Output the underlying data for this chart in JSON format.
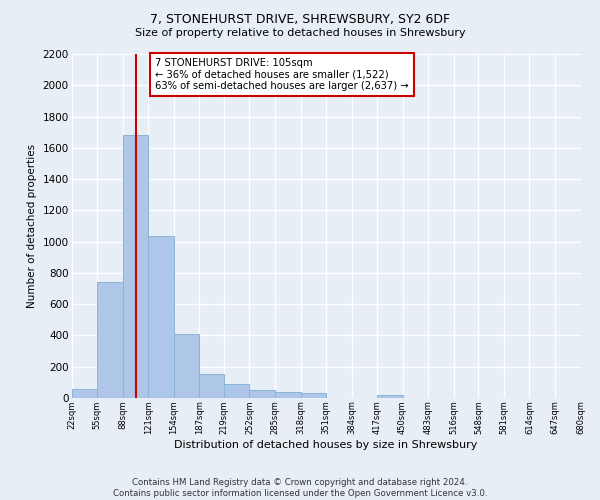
{
  "title": "7, STONEHURST DRIVE, SHREWSBURY, SY2 6DF",
  "subtitle": "Size of property relative to detached houses in Shrewsbury",
  "xlabel": "Distribution of detached houses by size in Shrewsbury",
  "ylabel": "Number of detached properties",
  "footer_line1": "Contains HM Land Registry data © Crown copyright and database right 2024.",
  "footer_line2": "Contains public sector information licensed under the Open Government Licence v3.0.",
  "bar_lefts": [
    22,
    55,
    88,
    121,
    154,
    187,
    219,
    252,
    285,
    318,
    351,
    384,
    417,
    450,
    483,
    516,
    548,
    581,
    614,
    647
  ],
  "bar_rights": [
    55,
    88,
    121,
    154,
    187,
    219,
    252,
    285,
    318,
    351,
    384,
    417,
    450,
    483,
    516,
    548,
    581,
    614,
    647,
    680
  ],
  "bar_heights": [
    55,
    740,
    1680,
    1035,
    410,
    155,
    90,
    50,
    40,
    30,
    0,
    0,
    20,
    0,
    0,
    0,
    0,
    0,
    0,
    0
  ],
  "bar_color": "#aec6e8",
  "bar_edge_color": "#8ab4d8",
  "vline_x": 105,
  "vline_color": "#cc0000",
  "ylim": [
    0,
    2200
  ],
  "yticks": [
    0,
    200,
    400,
    600,
    800,
    1000,
    1200,
    1400,
    1600,
    1800,
    2000,
    2200
  ],
  "xtick_labels": [
    "22sqm",
    "55sqm",
    "88sqm",
    "121sqm",
    "154sqm",
    "187sqm",
    "219sqm",
    "252sqm",
    "285sqm",
    "318sqm",
    "351sqm",
    "384sqm",
    "417sqm",
    "450sqm",
    "483sqm",
    "516sqm",
    "548sqm",
    "581sqm",
    "614sqm",
    "647sqm",
    "680sqm"
  ],
  "annotation_line1": "7 STONEHURST DRIVE: 105sqm",
  "annotation_line2": "← 36% of detached houses are smaller (1,522)",
  "annotation_line3": "63% of semi-detached houses are larger (2,637) →",
  "annotation_box_color": "#ffffff",
  "annotation_border_color": "#cc0000",
  "bg_color": "#e8eef5",
  "plot_bg_color": "#e8eef5"
}
